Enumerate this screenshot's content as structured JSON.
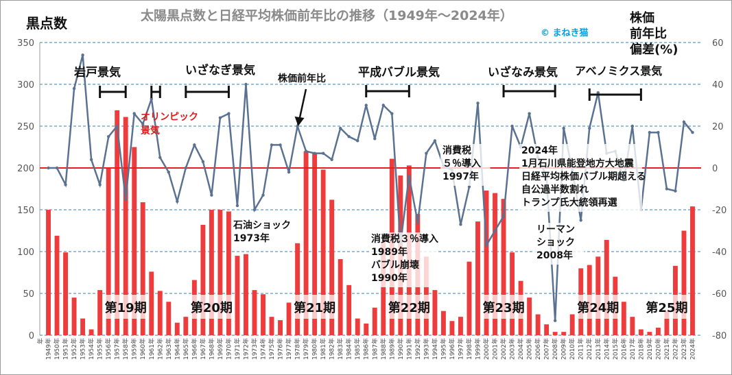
{
  "chart_data": {
    "type": "bar+line",
    "title": "太陽黒点数と日経平均株価前年比の推移（1949年～2024年）",
    "credit": "© まねき猫",
    "ylabel_left": "黒点数",
    "ylabel_right": "株価\n前年比\n偏差(%)",
    "ylim_left": [
      0,
      350
    ],
    "ylim_right": [
      -80,
      60
    ],
    "yticks_left": [
      0,
      50,
      100,
      150,
      200,
      250,
      300,
      350
    ],
    "yticks_right": [
      -80,
      -60,
      -40,
      -20,
      0,
      20,
      40,
      60
    ],
    "grid": true,
    "x_first_label": "年",
    "years": [
      1949,
      1950,
      1951,
      1952,
      1953,
      1954,
      1955,
      1956,
      1957,
      1958,
      1959,
      1960,
      1961,
      1962,
      1963,
      1964,
      1965,
      1966,
      1967,
      1968,
      1969,
      1970,
      1971,
      1972,
      1973,
      1974,
      1975,
      1976,
      1977,
      1978,
      1979,
      1980,
      1981,
      1982,
      1983,
      1984,
      1985,
      1986,
      1987,
      1988,
      1989,
      1990,
      1991,
      1992,
      1993,
      1994,
      1995,
      1996,
      1997,
      1998,
      1999,
      2000,
      2001,
      2002,
      2003,
      2004,
      2005,
      2006,
      2007,
      2008,
      2009,
      2010,
      2011,
      2012,
      2013,
      2014,
      2015,
      2016,
      2017,
      2018,
      2019,
      2020,
      2021,
      2022,
      2023,
      2024
    ],
    "year_label_suffix": "年",
    "series": [
      {
        "name": "黒点数",
        "kind": "bar",
        "color": "#ee3b3b",
        "values": [
          150,
          119,
          99,
          45,
          20,
          7,
          54,
          200,
          269,
          261,
          225,
          159,
          76,
          53,
          40,
          15,
          22,
          66,
          132,
          150,
          150,
          148,
          95,
          97,
          54,
          49,
          22,
          18,
          39,
          110,
          220,
          218,
          198,
          162,
          91,
          60,
          20,
          14,
          33,
          112,
          211,
          191,
          203,
          145,
          94,
          54,
          29,
          17,
          22,
          88,
          136,
          173,
          170,
          163,
          99,
          65,
          45,
          25,
          13,
          4,
          4,
          25,
          80,
          84,
          94,
          114,
          70,
          40,
          22,
          7,
          4,
          9,
          29,
          83,
          125,
          154
        ]
      },
      {
        "name": "株価前年比",
        "kind": "line",
        "color": "#5a7191",
        "values": [
          0,
          0,
          -8,
          38,
          54,
          4,
          -8,
          15,
          20,
          -15,
          26,
          21,
          33,
          5,
          -2,
          -16,
          0,
          11,
          3,
          -13,
          24,
          26,
          -18,
          40,
          -20,
          -13,
          11,
          11,
          -2,
          20,
          8,
          7,
          7,
          4,
          19,
          15,
          13,
          30,
          14,
          30,
          26,
          -36,
          -4,
          -26,
          7,
          13,
          1,
          -1,
          -27,
          -9,
          31,
          -37,
          -30,
          -23,
          20,
          10,
          26,
          5,
          -4,
          -73,
          19,
          -1,
          -25,
          19,
          36,
          7,
          8,
          -6,
          20,
          -20,
          17,
          17,
          -10,
          -11,
          22,
          17
        ]
      }
    ],
    "annotations": [
      {
        "text": "岩戸景気",
        "bar_from": 1955,
        "bar_to": 1958
      },
      {
        "text": "",
        "bar_from": 1961,
        "bar_to": 1962
      },
      {
        "text": "いざなぎ景気",
        "bar_from": 1965,
        "bar_to": 1970
      },
      {
        "text": "株価前年比",
        "arrow_to": 1978
      },
      {
        "text": "平成バブル景気",
        "bar_from": 1986,
        "bar_to": 1991
      },
      {
        "text": "いざなみ景気",
        "bar_from": 2002,
        "bar_to": 2008
      },
      {
        "text": "アベノミクス景気",
        "bar_from": 2012,
        "bar_to": 2018
      },
      {
        "text": "オリンピック\n景気"
      },
      {
        "text": "石油ショック\n1973年"
      },
      {
        "text": "消費税３％導入\n1989年\nバブル崩壊\n1990年"
      },
      {
        "text": "消費税\n５％導入\n1997年"
      },
      {
        "text": "2024年\n1月石川県能登地方大地震\n日経平均株価バブル期超える\n自公過半数割れ\nトランプ氏大統領再選"
      },
      {
        "text": "リーマン\nショック\n2008年"
      }
    ],
    "cycles": [
      {
        "text": "第19期",
        "year": 1958
      },
      {
        "text": "第20期",
        "year": 1968
      },
      {
        "text": "第21期",
        "year": 1980
      },
      {
        "text": "第22期",
        "year": 1991
      },
      {
        "text": "第23期",
        "year": 2002
      },
      {
        "text": "第24期",
        "year": 2013
      },
      {
        "text": "第25期",
        "year": 2021
      }
    ]
  }
}
